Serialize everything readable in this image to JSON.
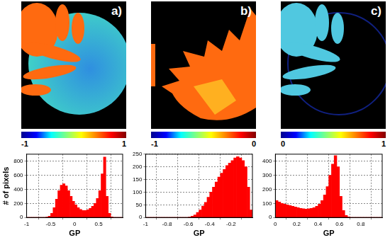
{
  "chart_data": [
    {
      "type": "histogram",
      "panel": "a)",
      "colorbar": {
        "range": [
          -1,
          1
        ],
        "ticks": [
          -1,
          1
        ]
      },
      "x_label": "GP",
      "y_label": "# of pixels",
      "color": "#ff0000",
      "grid": true,
      "xlim": [
        -1,
        1
      ],
      "xticks": [
        -1,
        -0.5,
        0,
        0.5
      ],
      "ylim": [
        0,
        900
      ],
      "yticks": [
        0,
        200,
        400,
        600,
        800
      ],
      "bins": [
        -1,
        -0.95,
        -0.9,
        -0.85,
        -0.8,
        -0.75,
        -0.7,
        -0.65,
        -0.6,
        -0.55,
        -0.5,
        -0.45,
        -0.4,
        -0.35,
        -0.3,
        -0.25,
        -0.2,
        -0.15,
        -0.1,
        -0.05,
        0,
        0.05,
        0.1,
        0.15,
        0.2,
        0.25,
        0.3,
        0.35,
        0.4,
        0.45,
        0.5,
        0.55,
        0.6,
        0.65,
        0.7,
        0.75,
        0.8,
        0.85,
        0.9,
        0.95,
        1
      ],
      "counts": [
        0,
        0,
        0,
        0,
        0,
        0,
        0,
        0,
        5,
        20,
        60,
        140,
        260,
        380,
        460,
        480,
        450,
        380,
        300,
        230,
        180,
        140,
        115,
        100,
        100,
        110,
        130,
        160,
        200,
        270,
        380,
        620,
        860,
        300,
        60,
        10,
        0,
        0,
        0,
        0
      ]
    },
    {
      "type": "histogram",
      "panel": "b)",
      "colorbar": {
        "range": [
          -1,
          0
        ],
        "ticks": [
          -1,
          0
        ]
      },
      "x_label": "GP",
      "color": "#ff0000",
      "grid": true,
      "xlim": [
        -1,
        0
      ],
      "xticks": [
        -1,
        -0.8,
        -0.6,
        -0.4,
        -0.2
      ],
      "ylim": [
        0,
        250
      ],
      "yticks": [
        0,
        50,
        100,
        150,
        200,
        250
      ],
      "bins": [
        -1,
        -0.975,
        -0.95,
        -0.925,
        -0.9,
        -0.875,
        -0.85,
        -0.825,
        -0.8,
        -0.775,
        -0.75,
        -0.725,
        -0.7,
        -0.675,
        -0.65,
        -0.625,
        -0.6,
        -0.575,
        -0.55,
        -0.525,
        -0.5,
        -0.475,
        -0.45,
        -0.425,
        -0.4,
        -0.375,
        -0.35,
        -0.325,
        -0.3,
        -0.275,
        -0.25,
        -0.225,
        -0.2,
        -0.175,
        -0.15,
        -0.125,
        -0.1,
        -0.075,
        -0.05,
        -0.025,
        0
      ],
      "counts": [
        0,
        0,
        0,
        0,
        0,
        0,
        0,
        0,
        0,
        0,
        0,
        0,
        0,
        0,
        0,
        0,
        2,
        5,
        10,
        20,
        30,
        45,
        60,
        80,
        100,
        120,
        140,
        160,
        175,
        190,
        205,
        215,
        225,
        235,
        240,
        235,
        225,
        200,
        120,
        30
      ]
    },
    {
      "type": "histogram",
      "panel": "c)",
      "colorbar": {
        "range": [
          0,
          1
        ],
        "ticks": [
          0,
          1
        ]
      },
      "x_label": "GP",
      "color": "#ff0000",
      "grid": true,
      "xlim": [
        0,
        1
      ],
      "xticks": [
        0,
        0.2,
        0.4,
        0.6,
        0.8
      ],
      "ylim": [
        0,
        450
      ],
      "yticks": [
        0,
        100,
        200,
        300,
        400
      ],
      "bins": [
        0,
        0.025,
        0.05,
        0.075,
        0.1,
        0.125,
        0.15,
        0.175,
        0.2,
        0.225,
        0.25,
        0.275,
        0.3,
        0.325,
        0.35,
        0.375,
        0.4,
        0.425,
        0.45,
        0.475,
        0.5,
        0.525,
        0.55,
        0.575,
        0.6,
        0.625,
        0.65,
        0.675,
        0.7,
        0.725,
        0.75,
        0.775,
        0.8,
        0.825,
        0.85,
        0.875,
        0.9,
        0.925,
        0.95,
        0.975,
        1
      ],
      "counts": [
        120,
        110,
        100,
        95,
        90,
        85,
        80,
        75,
        70,
        65,
        62,
        60,
        62,
        65,
        70,
        80,
        95,
        120,
        160,
        220,
        300,
        380,
        440,
        360,
        150,
        50,
        15,
        5,
        0,
        0,
        0,
        0,
        0,
        0,
        0,
        0,
        0,
        0,
        0,
        0
      ]
    }
  ]
}
